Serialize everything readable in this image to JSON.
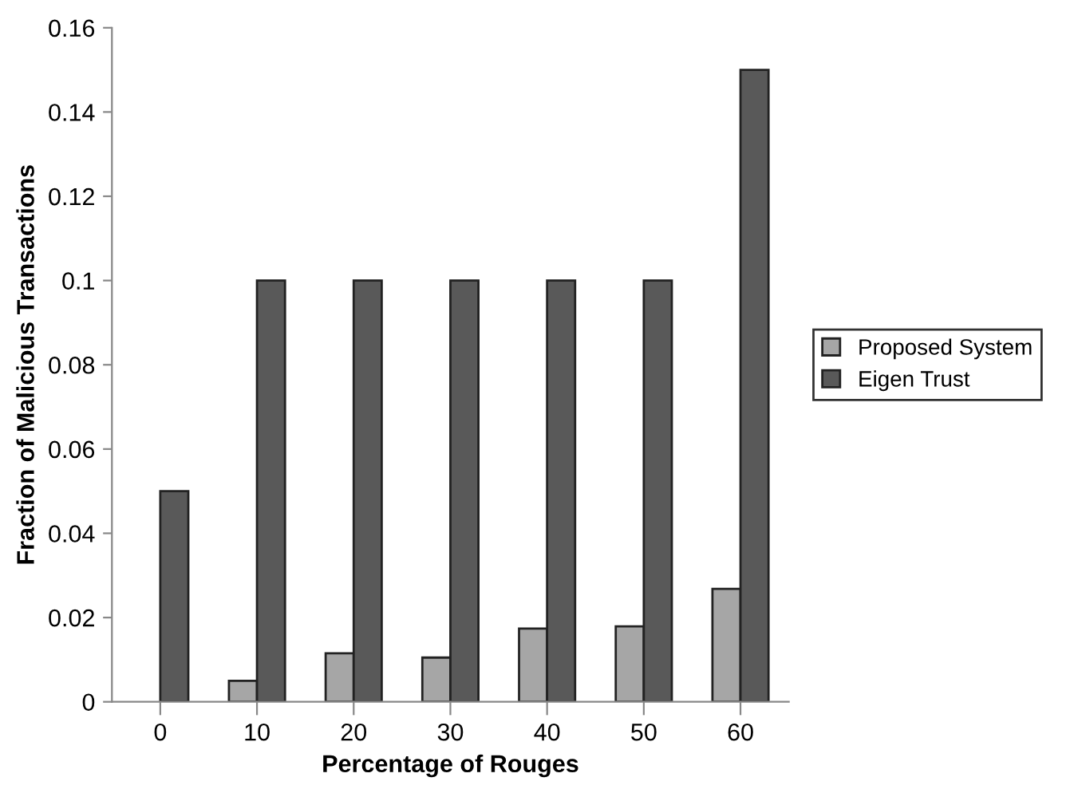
{
  "chart_data": {
    "type": "bar",
    "xlabel": "Percentage of Rouges",
    "ylabel": "Fraction of Malicious Transactions",
    "categories": [
      "0",
      "10",
      "20",
      "30",
      "40",
      "50",
      "60"
    ],
    "series": [
      {
        "name": "Proposed System",
        "color": "#a6a6a6",
        "values": [
          null,
          0.005,
          0.0115,
          0.0105,
          0.0174,
          0.0179,
          0.0268
        ]
      },
      {
        "name": "Eigen Trust",
        "color": "#595959",
        "values": [
          0.05,
          0.1,
          0.1,
          0.1,
          0.1,
          0.1,
          0.15
        ]
      }
    ],
    "ylim": [
      0,
      0.16
    ],
    "yticks": [
      0,
      0.02,
      0.04,
      0.06,
      0.08,
      0.1,
      0.12,
      0.14,
      0.16
    ],
    "grid": false,
    "legend": "right"
  }
}
